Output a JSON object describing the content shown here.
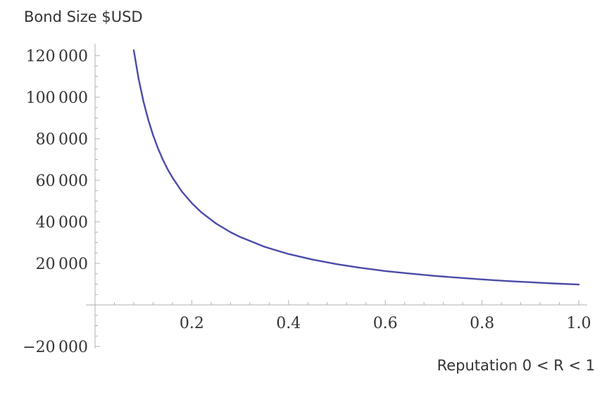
{
  "chart_data": {
    "type": "line",
    "ylabel": "Bond Size $USD",
    "xlabel": "Reputation 0 < R < 1",
    "xlim": [
      0.0,
      1.02
    ],
    "ylim": [
      -20000,
      125000
    ],
    "x_ticks": [
      0.2,
      0.4,
      0.6,
      0.8,
      1.0
    ],
    "x_tick_labels": [
      "0.2",
      "0.4",
      "0.6",
      "0.8",
      "1.0"
    ],
    "y_ticks": [
      -20000,
      20000,
      40000,
      60000,
      80000,
      100000,
      120000
    ],
    "y_tick_labels": [
      "−20 000",
      "20 000",
      "40 000",
      "60 000",
      "80 000",
      "100 000",
      "120 000"
    ],
    "grid": false,
    "series": [
      {
        "color": "#4b4ba8",
        "x": [
          0.08,
          0.09,
          0.1,
          0.11,
          0.12,
          0.13,
          0.14,
          0.15,
          0.16,
          0.18,
          0.2,
          0.22,
          0.25,
          0.28,
          0.3,
          0.35,
          0.4,
          0.45,
          0.5,
          0.55,
          0.6,
          0.65,
          0.7,
          0.75,
          0.8,
          0.85,
          0.9,
          0.95,
          1.0
        ],
        "y": [
          122600,
          108900,
          98000,
          89100,
          81700,
          75400,
          70000,
          65300,
          61300,
          54400,
          49000,
          44500,
          39200,
          35000,
          32700,
          28000,
          24500,
          21800,
          19600,
          17800,
          16300,
          15100,
          14000,
          13100,
          12250,
          11500,
          10900,
          10300,
          9800
        ]
      }
    ]
  }
}
